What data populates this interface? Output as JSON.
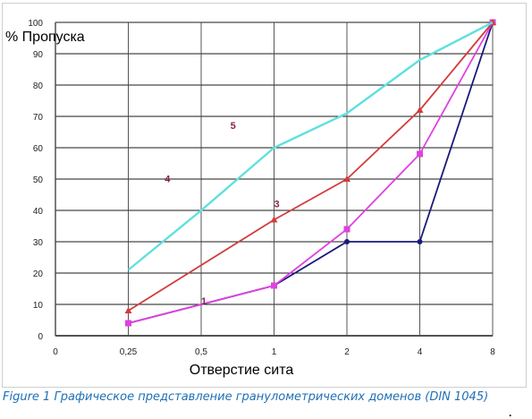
{
  "chart_data": {
    "type": "line",
    "ylabel": "% Пропуска",
    "xlabel": "Отверстие сита",
    "x_tick_labels": [
      "0",
      "0,25",
      "0,5",
      "1",
      "2",
      "4",
      "8"
    ],
    "y_tick_labels": [
      "0",
      "10",
      "20",
      "30",
      "40",
      "50",
      "60",
      "70",
      "80",
      "90",
      "100"
    ],
    "ylim": [
      0,
      100
    ],
    "grid": true,
    "series": [
      {
        "name": "1",
        "color": "#1a1a7a",
        "marker": "circle",
        "x": [
          "0,25",
          "1",
          "2",
          "4",
          "8"
        ],
        "values": [
          4,
          16,
          30,
          30,
          100
        ]
      },
      {
        "name": "3",
        "color": "#e040e0",
        "marker": "square",
        "x": [
          "0,25",
          "1",
          "2",
          "4",
          "8"
        ],
        "values": [
          4,
          16,
          34,
          58,
          100
        ]
      },
      {
        "name": "4",
        "color": "#d33b3b",
        "marker": "triangle",
        "x": [
          "0,25",
          "1",
          "2",
          "4",
          "8"
        ],
        "values": [
          8,
          37,
          50,
          72,
          100
        ]
      },
      {
        "name": "5",
        "color": "#5fe0e0",
        "marker": "none",
        "x": [
          "0,25",
          "0,5",
          "1",
          "2",
          "4",
          "8"
        ],
        "values": [
          21,
          40,
          60,
          71,
          88,
          100
        ]
      }
    ]
  },
  "caption": "Figure 1 Графическое представление гранулометрических доменов (DIN 1045)",
  "stray_text": "."
}
